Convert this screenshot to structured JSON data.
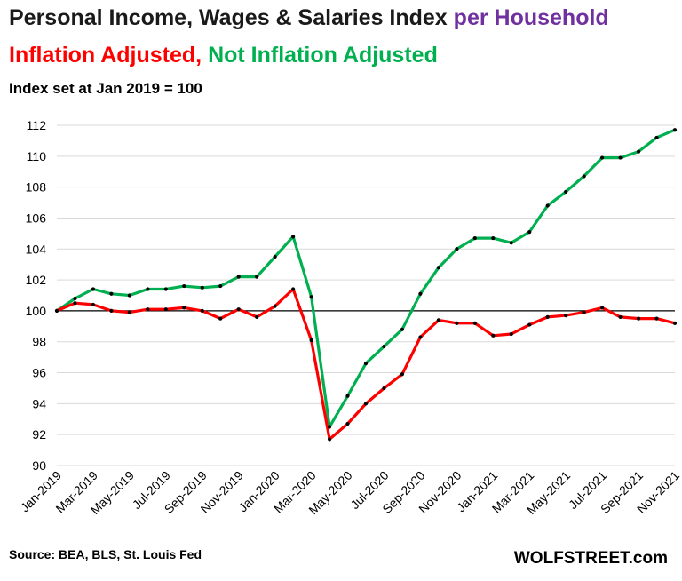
{
  "header": {
    "title_main": "Personal Income, Wages & Salaries Index ",
    "title_highlight": "per Household",
    "title_red": "Inflation Adjusted,",
    "title_green": " Not Inflation Adjusted",
    "subtitle": "Index set at Jan 2019 = 100"
  },
  "footer": {
    "source": "Source: BEA, BLS, St. Louis Fed",
    "brand": "WOLFSTREET.com"
  },
  "chart_data": {
    "type": "line",
    "x": [
      "Jan-2019",
      "Feb-2019",
      "Mar-2019",
      "Apr-2019",
      "May-2019",
      "Jun-2019",
      "Jul-2019",
      "Aug-2019",
      "Sep-2019",
      "Oct-2019",
      "Nov-2019",
      "Dec-2019",
      "Jan-2020",
      "Feb-2020",
      "Mar-2020",
      "Apr-2020",
      "May-2020",
      "Jun-2020",
      "Jul-2020",
      "Aug-2020",
      "Sep-2020",
      "Oct-2020",
      "Nov-2020",
      "Dec-2020",
      "Jan-2021",
      "Feb-2021",
      "Mar-2021",
      "Apr-2021",
      "May-2021",
      "Jun-2021",
      "Jul-2021",
      "Aug-2021",
      "Sep-2021",
      "Oct-2021",
      "Nov-2021"
    ],
    "x_tick_labels": [
      "Jan-2019",
      "Mar-2019",
      "May-2019",
      "Jul-2019",
      "Sep-2019",
      "Nov-2019",
      "Jan-2020",
      "Mar-2020",
      "May-2020",
      "Jul-2020",
      "Sep-2020",
      "Nov-2020",
      "Jan-2021",
      "Mar-2021",
      "May-2021",
      "Jul-2021",
      "Sep-2021",
      "Nov-2021"
    ],
    "series": [
      {
        "color": "#00b050",
        "values": [
          100.0,
          100.8,
          101.4,
          101.1,
          101.0,
          101.4,
          101.4,
          101.6,
          101.5,
          101.6,
          102.2,
          102.2,
          103.5,
          104.8,
          100.9,
          92.5,
          94.5,
          96.6,
          97.7,
          98.8,
          101.1,
          102.8,
          104.0,
          104.7,
          104.7,
          104.4,
          105.1,
          106.8,
          107.7,
          108.7,
          109.9,
          109.9,
          110.3,
          111.2,
          111.7
        ]
      },
      {
        "color": "#ff0000",
        "values": [
          100.0,
          100.5,
          100.4,
          100.0,
          99.9,
          100.1,
          100.1,
          100.2,
          100.0,
          99.5,
          100.1,
          99.6,
          100.3,
          101.4,
          98.1,
          91.7,
          92.7,
          94.0,
          95.0,
          95.9,
          98.3,
          99.4,
          99.2,
          99.2,
          98.4,
          98.5,
          99.1,
          99.6,
          99.7,
          99.9,
          100.2,
          99.6,
          99.5,
          99.5,
          99.2
        ]
      }
    ],
    "y_ticks": [
      90,
      92,
      94,
      96,
      98,
      100,
      102,
      104,
      106,
      108,
      110,
      112
    ],
    "ylim": [
      90,
      112
    ],
    "reference_line": 100,
    "grid": "horizontal",
    "line_color_ref": "#000000",
    "gridline_color": "#d9d9d9"
  }
}
